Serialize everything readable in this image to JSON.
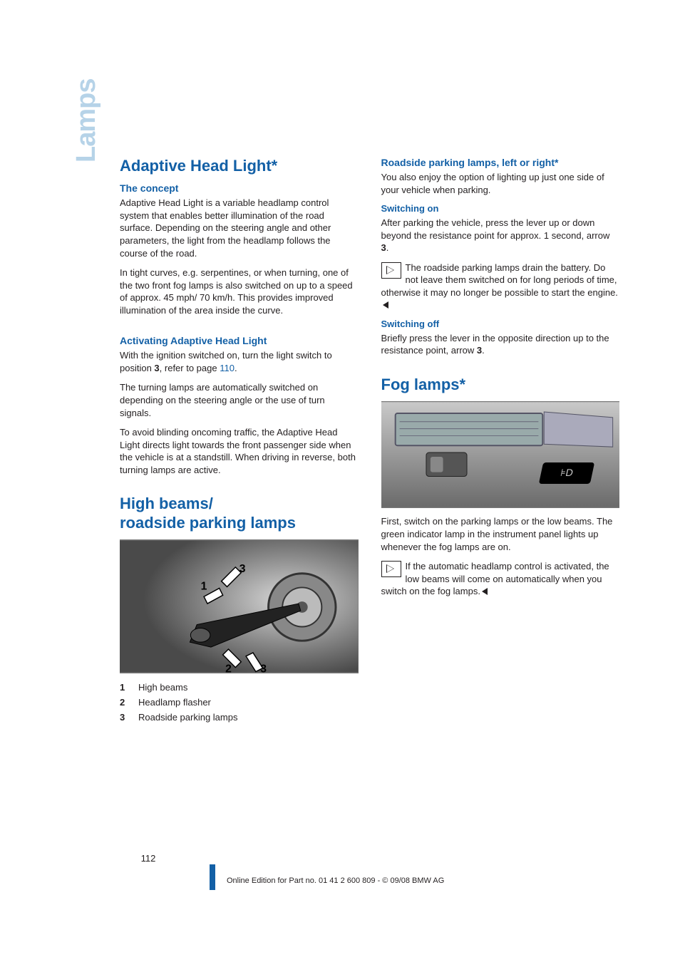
{
  "sideTab": "Lamps",
  "left": {
    "section1": {
      "title": "Adaptive Head Light*",
      "conceptHeading": "The concept",
      "p1": "Adaptive Head Light is a variable headlamp control system that enables better illumination of the road surface. Depending on the steering angle and other parameters, the light from the headlamp follows the course of the road.",
      "p2": "In tight curves, e.g. serpentines, or when turning, one of the two front fog lamps is also switched on up to a speed of approx. 45 mph/ 70 km/h. This provides improved illumination of the area inside the curve.",
      "activateHeading": "Activating Adaptive Head Light",
      "p3a": "With the ignition switched on, turn the light switch to position ",
      "p3bold": "3",
      "p3b": ", refer to page ",
      "p3page": "110",
      "p3c": ".",
      "p4": "The turning lamps are automatically switched on depending on the steering angle or the use of turn signals.",
      "p5": "To avoid blinding oncoming traffic, the Adaptive Head Light directs light towards the front passenger side when the vehicle is at a standstill. When driving in reverse, both turning lamps are active."
    },
    "section2": {
      "titleLine1": "High beams/",
      "titleLine2": "roadside parking lamps",
      "items": [
        {
          "num": "1",
          "label": "High beams"
        },
        {
          "num": "2",
          "label": "Headlamp flasher"
        },
        {
          "num": "3",
          "label": "Roadside parking lamps"
        }
      ]
    }
  },
  "right": {
    "sectionA": {
      "heading": "Roadside parking lamps, left or right*",
      "p1": "You also enjoy the option of lighting up just one side of your vehicle when parking.",
      "onHeading": "Switching on",
      "p2a": "After parking the vehicle, press the lever up or down beyond the resistance point for approx. 1 second, arrow ",
      "p2bold": "3",
      "p2b": ".",
      "note1": "The roadside parking lamps drain the battery. Do not leave them switched on for long periods of time, otherwise it may no longer be possible to start the engine.",
      "offHeading": "Switching off",
      "p3a": "Briefly press the lever in the opposite direction up to the resistance point, arrow ",
      "p3bold": "3",
      "p3b": "."
    },
    "sectionB": {
      "title": "Fog lamps*",
      "fogSymbol": "⊧D",
      "p1": "First, switch on the parking lamps or the low beams. The green indicator lamp in the instrument panel lights up whenever the fog lamps are on.",
      "note1": "If the automatic headlamp control is activated, the low beams will come on automatically when you switch on the fog lamps."
    }
  },
  "footer": {
    "pageNumber": "112",
    "line": "Online Edition for Part no. 01 41 2 600 809 - © 09/08 BMW AG"
  }
}
